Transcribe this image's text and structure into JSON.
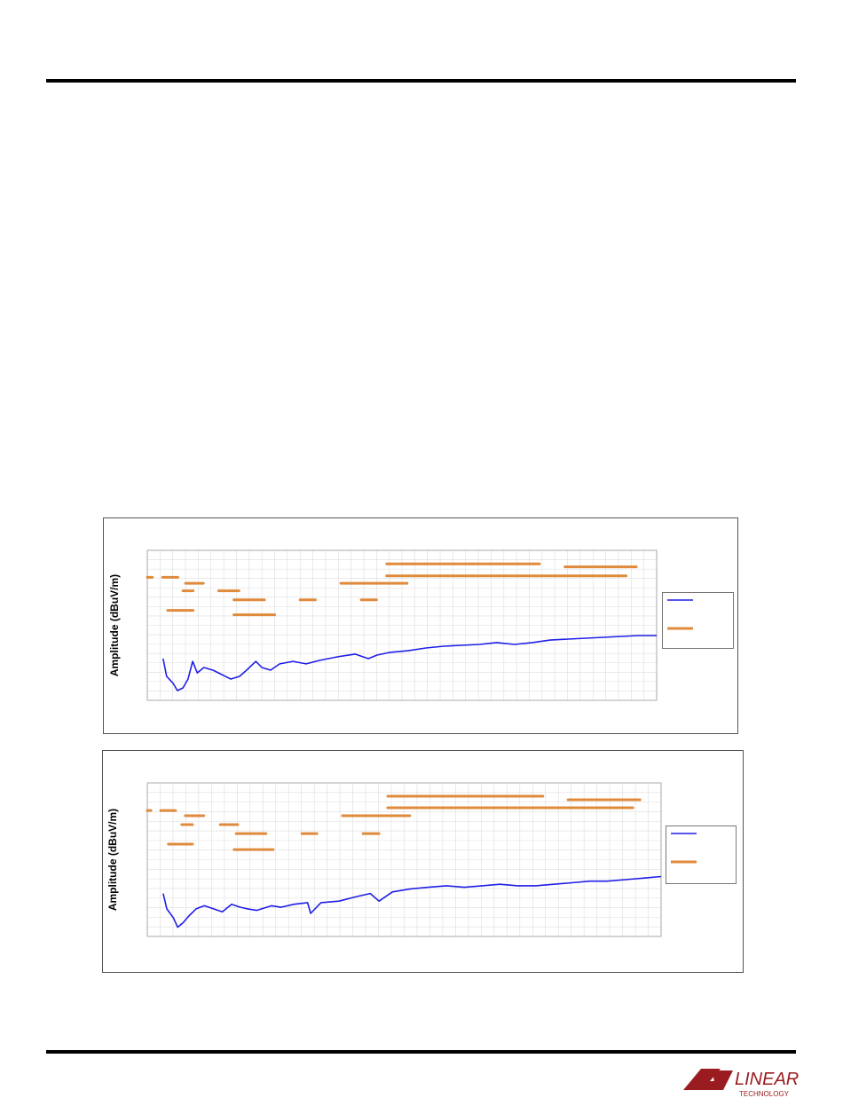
{
  "chart_data": [
    {
      "type": "line",
      "y_label": "Amplitude (dBuV/m)",
      "xlim": [
        0,
        100
      ],
      "ylim": [
        0,
        100
      ],
      "grid": true,
      "series": [
        {
          "color": "#1f1fe6",
          "x": [
            3.1,
            3.8,
            5.1,
            5.9,
            7.0,
            8.0,
            8.9,
            9.8,
            11.1,
            12.9,
            14.6,
            16.4,
            18.1,
            19.5,
            21.3,
            22.5,
            24.2,
            26,
            28.6,
            31.2,
            33.8,
            37.3,
            40.8,
            43.4,
            45.1,
            47.7,
            51.2,
            54.7,
            58.2,
            61.7,
            65.2,
            68.6,
            72.1,
            75.6,
            79.1,
            82.6,
            86.1,
            89.5,
            93,
            96.5,
            100
          ],
          "values": [
            27.8,
            16,
            11.2,
            6.5,
            8.3,
            14.2,
            26,
            18.3,
            21.9,
            20.1,
            17.2,
            14.2,
            16,
            20.1,
            26,
            21.9,
            20.1,
            24.3,
            26,
            24.3,
            26.6,
            29,
            30.8,
            27.8,
            30.2,
            32,
            33.1,
            34.9,
            36.1,
            36.7,
            37.3,
            38.5,
            37.3,
            38.5,
            40.2,
            40.8,
            41.4,
            42,
            42.6,
            43.2,
            43.2
          ]
        }
      ],
      "limits": {
        "color": "#e08a3c",
        "segments": [
          {
            "x": [
              47,
              77
            ],
            "y": 91
          },
          {
            "x": [
              82,
              96
            ],
            "y": 89
          },
          {
            "x": [
              47,
              94
            ],
            "y": 83
          },
          {
            "x": [
              3,
              6
            ],
            "y": 82
          },
          {
            "x": [
              0,
              1
            ],
            "y": 82
          },
          {
            "x": [
              7.5,
              11
            ],
            "y": 78
          },
          {
            "x": [
              38,
              51
            ],
            "y": 78
          },
          {
            "x": [
              7,
              9
            ],
            "y": 73
          },
          {
            "x": [
              14,
              18
            ],
            "y": 73
          },
          {
            "x": [
              17,
              23
            ],
            "y": 67
          },
          {
            "x": [
              30,
              33
            ],
            "y": 67
          },
          {
            "x": [
              42,
              45
            ],
            "y": 67
          },
          {
            "x": [
              4,
              9
            ],
            "y": 60
          },
          {
            "x": [
              17,
              25
            ],
            "y": 57
          }
        ]
      }
    },
    {
      "type": "line",
      "y_label": "Amplitude (dBuV/m)",
      "xlim": [
        0,
        100
      ],
      "ylim": [
        0,
        100
      ],
      "grid": true,
      "series": [
        {
          "color": "#1f1fe6",
          "x": [
            3.1,
            3.8,
            5.1,
            5.9,
            7.0,
            8.0,
            9.5,
            11.1,
            12.9,
            14.6,
            16.4,
            18.1,
            19.5,
            21.3,
            24.2,
            26,
            28.6,
            31.2,
            31.8,
            33.8,
            37.3,
            40.8,
            43.4,
            45.1,
            47.7,
            51.2,
            54.7,
            58.2,
            61.7,
            65.2,
            68.6,
            72.1,
            75.6,
            79.1,
            82.6,
            86.1,
            89.5,
            93,
            96.5,
            100
          ],
          "values": [
            28,
            18,
            12,
            6,
            9,
            13,
            18,
            20,
            18,
            16,
            21,
            19,
            18,
            17,
            20,
            19,
            21,
            22,
            15,
            22,
            23,
            26,
            28,
            23,
            29,
            31,
            32,
            33,
            32,
            33,
            34,
            33,
            33,
            34,
            35,
            36,
            36,
            37,
            38,
            39
          ]
        }
      ],
      "limits": {
        "color": "#e08a3c",
        "segments": [
          {
            "x": [
              46.8,
              77
            ],
            "y": 91.3
          },
          {
            "x": [
              81.9,
              95.9
            ],
            "y": 89
          },
          {
            "x": [
              46.8,
              94.5
            ],
            "y": 83.8
          },
          {
            "x": [
              2.6,
              5.5
            ],
            "y": 82
          },
          {
            "x": [
              0,
              0.7
            ],
            "y": 82
          },
          {
            "x": [
              7.4,
              11
            ],
            "y": 78.6
          },
          {
            "x": [
              38,
              51.1
            ],
            "y": 78.6
          },
          {
            "x": [
              6.7,
              8.8
            ],
            "y": 72.8
          },
          {
            "x": [
              14.2,
              17.6
            ],
            "y": 72.8
          },
          {
            "x": [
              17.3,
              23.1
            ],
            "y": 67
          },
          {
            "x": [
              30.1,
              33
            ],
            "y": 67
          },
          {
            "x": [
              42,
              45.1
            ],
            "y": 67
          },
          {
            "x": [
              4.1,
              8.8
            ],
            "y": 60.1
          },
          {
            "x": [
              16.9,
              24.5
            ],
            "y": 56.6
          }
        ]
      }
    }
  ],
  "logo": {
    "name": "LINEAR",
    "sub": "TECHNOLOGY"
  }
}
